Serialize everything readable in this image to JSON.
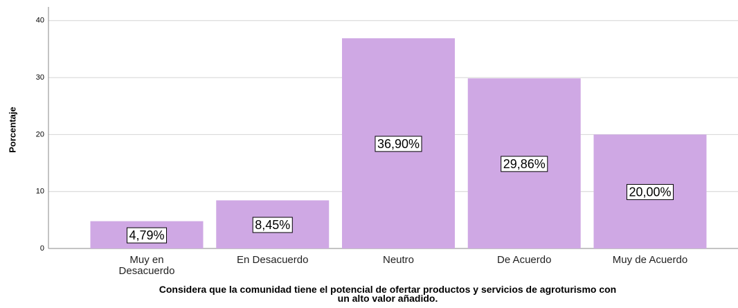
{
  "chart_data": {
    "type": "bar",
    "title": "Considera que la comunidad tiene el potencial de ofertar productos y servicios de agroturismo con\nun alto valor añadido.",
    "y_label": "Porcentaje",
    "categories": [
      "Muy en\nDesacuerdo",
      "En Desacuerdo",
      "Neutro",
      "De Acuerdo",
      "Muy de Acuerdo"
    ],
    "values": [
      4.79,
      8.45,
      36.9,
      29.86,
      20.0
    ],
    "value_labels": [
      "4,79%",
      "8,45%",
      "36,90%",
      "29,86%",
      "20,00%"
    ],
    "color": "#cfa8e4",
    "ylim": [
      0,
      42.4
    ],
    "yticks": [
      0,
      10,
      20,
      30,
      40
    ],
    "grid": true
  }
}
